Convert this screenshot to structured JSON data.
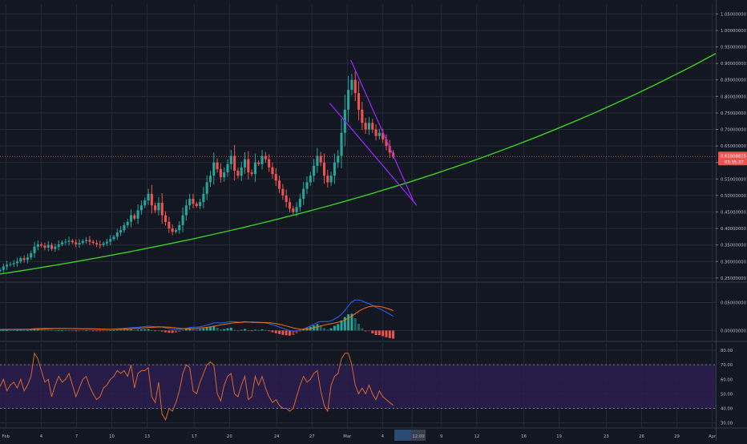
{
  "theme": {
    "background": "#131722",
    "grid": "#242a38",
    "axis_text": "#b2b5be",
    "separator": "#363a45",
    "candle_up": "#26a69a",
    "candle_down": "#ef5350",
    "curve": "#39d11f",
    "wedge": "#9c27ff",
    "rsi_band": "#2b1d4f",
    "rsi_line": "#d7672f",
    "macd_line": "#2962ff",
    "signal_line": "#ff6d00",
    "hist_up": "#26a69a",
    "hist_down": "#ef5350"
  },
  "price_axis": {
    "ticks": [
      "1.05000000",
      "1.00000000",
      "0.95000000",
      "0.90000000",
      "0.85000000",
      "0.80000000",
      "0.75000000",
      "0.70000000",
      "0.65000000",
      "0.60000000",
      "0.55000000",
      "0.50000000",
      "0.45000000",
      "0.40000000",
      "0.35000000",
      "0.30000000",
      "0.25000000"
    ],
    "last_price": "0.61808825",
    "countdown": "03:35:37",
    "last_price_color": "#ef5350"
  },
  "macd_axis": {
    "ticks": [
      "0.05000000",
      "0.00000000"
    ]
  },
  "rsi_axis": {
    "ticks": [
      "80.00",
      "70.00",
      "60.00",
      "50.00",
      "40.00",
      "30.00"
    ]
  },
  "time_axis": {
    "ticks": [
      "Feb",
      "4",
      "7",
      "10",
      "13",
      "17",
      "20",
      "24",
      "27",
      "Mar",
      "4",
      "12:00",
      "9",
      "12",
      "16",
      "19",
      "23",
      "26",
      "29",
      "Apr"
    ],
    "highlight": "12:00"
  },
  "chart_data": [
    {
      "type": "candlestick",
      "panel": "price",
      "ylim": [
        0.24,
        1.08
      ],
      "x_unit": "day index from Feb 1",
      "xlim": [
        0.5,
        61.3
      ],
      "last_price": 0.61808825,
      "closes": [
        0.275,
        0.285,
        0.29,
        0.292,
        0.295,
        0.3,
        0.31,
        0.305,
        0.312,
        0.325,
        0.345,
        0.352,
        0.348,
        0.342,
        0.35,
        0.338,
        0.345,
        0.352,
        0.358,
        0.36,
        0.363,
        0.358,
        0.352,
        0.356,
        0.362,
        0.365,
        0.36,
        0.356,
        0.352,
        0.35,
        0.355,
        0.36,
        0.368,
        0.375,
        0.388,
        0.395,
        0.41,
        0.42,
        0.44,
        0.43,
        0.455,
        0.47,
        0.485,
        0.505,
        0.47,
        0.455,
        0.478,
        0.44,
        0.42,
        0.4,
        0.39,
        0.395,
        0.41,
        0.44,
        0.47,
        0.49,
        0.475,
        0.468,
        0.48,
        0.505,
        0.54,
        0.56,
        0.6,
        0.58,
        0.555,
        0.57,
        0.595,
        0.62,
        0.575,
        0.56,
        0.585,
        0.61,
        0.57,
        0.565,
        0.6,
        0.595,
        0.62,
        0.61,
        0.585,
        0.565,
        0.545,
        0.52,
        0.5,
        0.48,
        0.46,
        0.45,
        0.465,
        0.49,
        0.52,
        0.54,
        0.56,
        0.59,
        0.62,
        0.6,
        0.56,
        0.54,
        0.56,
        0.6,
        0.62,
        0.69,
        0.76,
        0.82,
        0.85,
        0.81,
        0.76,
        0.72,
        0.7,
        0.72,
        0.7,
        0.68,
        0.69,
        0.67,
        0.65,
        0.63,
        0.618
      ],
      "curve": {
        "x": [
          0.5,
          10,
          20,
          30,
          40,
          50,
          61.3
        ],
        "y": [
          0.262,
          0.3,
          0.35,
          0.425,
          0.535,
          0.7,
          0.93
        ]
      },
      "wedge_upper": {
        "x": [
          30.3,
          35.6
        ],
        "y": [
          0.91,
          0.485
        ]
      },
      "wedge_lower": {
        "x": [
          28.5,
          35.9
        ],
        "y": [
          0.78,
          0.47
        ]
      }
    },
    {
      "type": "bar+line",
      "panel": "MACD",
      "ylim": [
        -0.018,
        0.085
      ],
      "histogram": [
        0.0003,
        0.0005,
        0.0006,
        0.0005,
        0.0004,
        0.0005,
        0.0008,
        0.0006,
        0.0007,
        0.0011,
        0.0019,
        0.0021,
        0.0016,
        0.0009,
        0.0008,
        0.0002,
        0.0001,
        0.0003,
        0.0004,
        0.0003,
        0.0002,
        -0.0001,
        -0.0003,
        -0.0002,
        0.0001,
        0.0002,
        0.0,
        -0.0002,
        -0.0004,
        -0.0005,
        -0.0003,
        0.0,
        0.0003,
        0.0006,
        0.001,
        0.0012,
        0.0016,
        0.0018,
        0.0022,
        0.0014,
        0.0018,
        0.002,
        0.0022,
        0.0025,
        0.0005,
        -0.0006,
        0.0002,
        -0.0018,
        -0.003,
        -0.004,
        -0.0042,
        -0.0036,
        -0.002,
        0.0008,
        0.003,
        0.0042,
        0.003,
        0.0022,
        0.0026,
        0.004,
        0.006,
        0.0068,
        0.008,
        0.005,
        0.0022,
        0.0026,
        0.004,
        0.005,
        0.001,
        -0.0006,
        0.0012,
        0.0028,
        -0.0004,
        -0.001,
        0.0014,
        0.0008,
        0.002,
        0.001,
        -0.0012,
        -0.003,
        -0.0048,
        -0.0064,
        -0.0076,
        -0.0084,
        -0.009,
        -0.008,
        -0.005,
        -0.0016,
        0.002,
        0.0046,
        0.0066,
        0.009,
        0.0115,
        0.009,
        0.004,
        0.0016,
        0.004,
        0.0085,
        0.0115,
        0.018,
        0.024,
        0.029,
        0.03,
        0.022,
        0.012,
        0.004,
        -0.002,
        -0.001,
        -0.005,
        -0.008,
        -0.008,
        -0.01,
        -0.012,
        -0.0135,
        -0.0145
      ],
      "macd": [
        0.002,
        0.0021,
        0.0022,
        0.0022,
        0.0022,
        0.0023,
        0.0024,
        0.0024,
        0.0025,
        0.0028,
        0.0034,
        0.0039,
        0.0041,
        0.0041,
        0.0041,
        0.0038,
        0.0037,
        0.0037,
        0.0037,
        0.0037,
        0.0036,
        0.0034,
        0.0031,
        0.003,
        0.003,
        0.003,
        0.0029,
        0.0027,
        0.0024,
        0.0021,
        0.002,
        0.002,
        0.0022,
        0.0025,
        0.003,
        0.0034,
        0.004,
        0.0046,
        0.0053,
        0.0053,
        0.0058,
        0.0064,
        0.007,
        0.0078,
        0.0074,
        0.0068,
        0.0069,
        0.0059,
        0.0048,
        0.0036,
        0.0026,
        0.002,
        0.002,
        0.0027,
        0.004,
        0.0053,
        0.0059,
        0.0062,
        0.0068,
        0.008,
        0.0097,
        0.0115,
        0.0135,
        0.014,
        0.0135,
        0.014,
        0.015,
        0.0162,
        0.0158,
        0.015,
        0.0152,
        0.016,
        0.0152,
        0.0142,
        0.0142,
        0.014,
        0.014,
        0.0135,
        0.0122,
        0.0105,
        0.0085,
        0.0062,
        0.004,
        0.0018,
        -0.0002,
        -0.001,
        -0.0005,
        0.001,
        0.003,
        0.0055,
        0.008,
        0.011,
        0.0145,
        0.016,
        0.016,
        0.016,
        0.0175,
        0.0205,
        0.024,
        0.029,
        0.036,
        0.044,
        0.051,
        0.0545,
        0.0545,
        0.053,
        0.05,
        0.048,
        0.045,
        0.0415,
        0.039,
        0.036,
        0.0325,
        0.029,
        0.0255
      ],
      "signal": [
        0.0018,
        0.0018,
        0.0018,
        0.0019,
        0.0019,
        0.0019,
        0.0019,
        0.0019,
        0.002,
        0.002,
        0.0021,
        0.0023,
        0.0025,
        0.0028,
        0.003,
        0.0032,
        0.0034,
        0.0035,
        0.0035,
        0.0035,
        0.0035,
        0.0035,
        0.0034,
        0.0033,
        0.0032,
        0.0031,
        0.0031,
        0.003,
        0.0029,
        0.0027,
        0.0026,
        0.0024,
        0.0023,
        0.0023,
        0.0023,
        0.0024,
        0.0026,
        0.0029,
        0.0033,
        0.0037,
        0.0041,
        0.0045,
        0.0049,
        0.0054,
        0.0058,
        0.0061,
        0.0063,
        0.0064,
        0.0062,
        0.0059,
        0.0054,
        0.0047,
        0.004,
        0.0034,
        0.0031,
        0.0032,
        0.0035,
        0.0039,
        0.0044,
        0.005,
        0.0058,
        0.0067,
        0.0078,
        0.0089,
        0.01,
        0.011,
        0.012,
        0.013,
        0.0138,
        0.0143,
        0.0146,
        0.015,
        0.0151,
        0.015,
        0.0149,
        0.0147,
        0.0145,
        0.0143,
        0.0139,
        0.0133,
        0.0124,
        0.0112,
        0.0098,
        0.0081,
        0.0064,
        0.0048,
        0.0034,
        0.0025,
        0.0022,
        0.0026,
        0.0035,
        0.0048,
        0.0064,
        0.008,
        0.0096,
        0.011,
        0.0122,
        0.0134,
        0.0148,
        0.0166,
        0.019,
        0.022,
        0.0258,
        0.0302,
        0.0345,
        0.038,
        0.0405,
        0.0425,
        0.0435,
        0.0435,
        0.043,
        0.0418,
        0.04,
        0.038,
        0.0355
      ]
    },
    {
      "type": "line",
      "panel": "RSI",
      "ylim": [
        27,
        85
      ],
      "band": [
        40,
        70
      ],
      "values": [
        55,
        60,
        52,
        56,
        58,
        54,
        60,
        52,
        56,
        62,
        78,
        74,
        66,
        58,
        60,
        48,
        56,
        62,
        58,
        60,
        64,
        56,
        48,
        54,
        60,
        62,
        55,
        50,
        46,
        48,
        54,
        56,
        60,
        62,
        66,
        64,
        66,
        62,
        70,
        54,
        64,
        66,
        66,
        68,
        48,
        44,
        58,
        36,
        32,
        40,
        38,
        44,
        52,
        64,
        70,
        68,
        52,
        50,
        58,
        64,
        70,
        72,
        70,
        50,
        45,
        56,
        62,
        64,
        50,
        48,
        56,
        62,
        46,
        48,
        62,
        56,
        62,
        54,
        48,
        44,
        46,
        42,
        40,
        40,
        38,
        40,
        48,
        56,
        62,
        58,
        60,
        64,
        66,
        52,
        42,
        38,
        56,
        62,
        64,
        74,
        78,
        78,
        70,
        56,
        50,
        54,
        50,
        56,
        50,
        46,
        52,
        48,
        46,
        44,
        42
      ]
    }
  ]
}
